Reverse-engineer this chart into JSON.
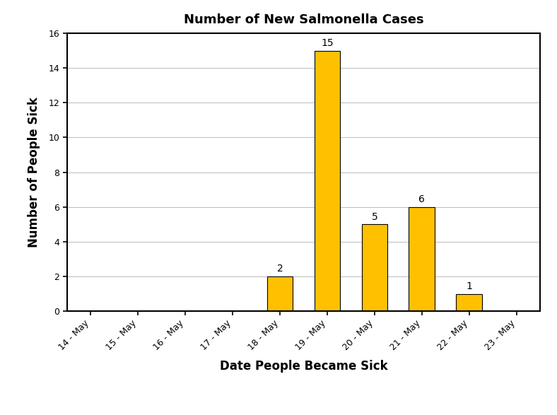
{
  "title": "Number of New Salmonella Cases",
  "xlabel": "Date People Became Sick",
  "ylabel": "Number of People Sick",
  "categories": [
    "14 - May",
    "15 - May",
    "16 - May",
    "17 - May",
    "18 - May",
    "19 - May",
    "20 - May",
    "21 - May",
    "22 - May",
    "23 - May"
  ],
  "values": [
    0,
    0,
    0,
    0,
    2,
    15,
    5,
    6,
    1,
    0
  ],
  "bar_color": "#FFC000",
  "bar_edge_color": "#000000",
  "ylim": [
    0,
    16
  ],
  "yticks": [
    0,
    2,
    4,
    6,
    8,
    10,
    12,
    14,
    16
  ],
  "background_color": "#ffffff",
  "title_fontsize": 13,
  "axis_label_fontsize": 12,
  "tick_fontsize": 9,
  "annotation_fontsize": 10,
  "grid_color": "#bbbbbb",
  "grid_linewidth": 0.7,
  "bar_width": 0.55
}
